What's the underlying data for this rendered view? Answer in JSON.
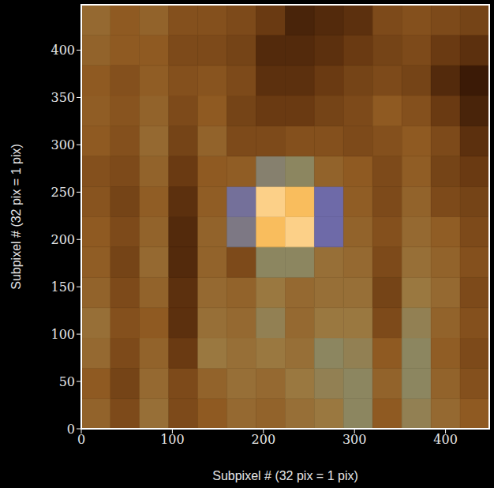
{
  "chart_data": {
    "type": "heatmap",
    "xlabel": "Subpixel # (32 pix = 1 pix)",
    "ylabel": "Subpixel # (32 pix = 1 pix)",
    "x": [
      0,
      32,
      64,
      96,
      128,
      160,
      192,
      224,
      256,
      288,
      320,
      352,
      384,
      416,
      448
    ],
    "y": [
      0,
      32,
      64,
      96,
      128,
      160,
      192,
      224,
      256,
      288,
      320,
      352,
      384,
      416,
      448
    ],
    "xlim": [
      0,
      448
    ],
    "ylim": [
      0,
      448
    ],
    "xticks": [
      0,
      100,
      200,
      300,
      400
    ],
    "yticks": [
      0,
      50,
      100,
      150,
      200,
      250,
      300,
      350,
      400
    ],
    "zlim": [
      0,
      1
    ],
    "cells": [
      [
        0.38,
        0.3,
        0.42,
        0.3,
        0.35,
        0.4,
        0.38,
        0.42,
        0.45,
        0.5,
        0.35,
        0.48,
        0.4,
        0.35
      ],
      [
        0.35,
        0.28,
        0.4,
        0.3,
        0.38,
        0.42,
        0.4,
        0.45,
        0.48,
        0.5,
        0.38,
        0.5,
        0.38,
        0.32
      ],
      [
        0.4,
        0.3,
        0.38,
        0.25,
        0.45,
        0.42,
        0.45,
        0.42,
        0.5,
        0.48,
        0.35,
        0.5,
        0.36,
        0.3
      ],
      [
        0.42,
        0.32,
        0.35,
        0.22,
        0.42,
        0.4,
        0.48,
        0.4,
        0.45,
        0.45,
        0.3,
        0.48,
        0.38,
        0.32
      ],
      [
        0.38,
        0.3,
        0.38,
        0.22,
        0.4,
        0.38,
        0.45,
        0.4,
        0.42,
        0.42,
        0.28,
        0.45,
        0.4,
        0.3
      ],
      [
        0.36,
        0.28,
        0.4,
        0.2,
        0.38,
        0.3,
        0.5,
        0.5,
        0.42,
        0.4,
        0.3,
        0.42,
        0.38,
        0.32
      ],
      [
        0.35,
        0.3,
        0.38,
        0.2,
        0.38,
        0.55,
        0.92,
        0.95,
        0.6,
        0.38,
        0.32,
        0.4,
        0.36,
        0.3
      ],
      [
        0.33,
        0.28,
        0.36,
        0.22,
        0.36,
        0.58,
        0.95,
        0.92,
        0.6,
        0.36,
        0.3,
        0.38,
        0.3,
        0.28
      ],
      [
        0.32,
        0.3,
        0.38,
        0.25,
        0.35,
        0.36,
        0.52,
        0.5,
        0.38,
        0.35,
        0.3,
        0.36,
        0.28,
        0.25
      ],
      [
        0.35,
        0.32,
        0.4,
        0.28,
        0.38,
        0.3,
        0.3,
        0.32,
        0.32,
        0.3,
        0.32,
        0.35,
        0.3,
        0.22
      ],
      [
        0.36,
        0.33,
        0.38,
        0.3,
        0.35,
        0.28,
        0.25,
        0.25,
        0.28,
        0.3,
        0.35,
        0.32,
        0.25,
        0.18
      ],
      [
        0.35,
        0.32,
        0.36,
        0.32,
        0.33,
        0.3,
        0.22,
        0.22,
        0.25,
        0.28,
        0.3,
        0.28,
        0.2,
        0.15
      ],
      [
        0.38,
        0.35,
        0.35,
        0.3,
        0.3,
        0.28,
        0.2,
        0.2,
        0.22,
        0.25,
        0.28,
        0.3,
        0.25,
        0.22
      ],
      [
        0.4,
        0.35,
        0.38,
        0.32,
        0.32,
        0.3,
        0.25,
        0.18,
        0.2,
        0.22,
        0.3,
        0.32,
        0.3,
        0.28
      ]
    ]
  }
}
